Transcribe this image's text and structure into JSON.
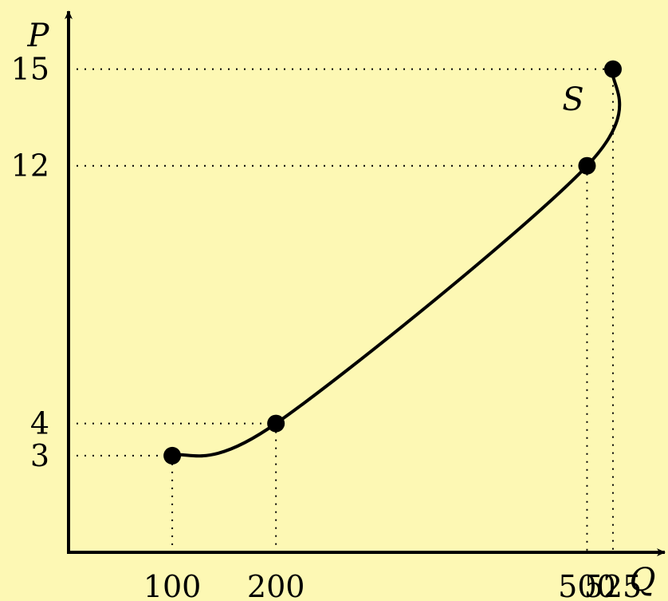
{
  "chart_data": {
    "type": "line",
    "title": "",
    "xlabel": "Q",
    "ylabel": "P",
    "curve_label": "S",
    "xlim": [
      0,
      575
    ],
    "ylim": [
      0,
      16.8
    ],
    "grid": false,
    "guide_lines": "dotted",
    "points": [
      {
        "x": 100,
        "y": 3,
        "x_label": "100",
        "y_label": "3"
      },
      {
        "x": 200,
        "y": 4,
        "x_label": "200",
        "y_label": "4"
      },
      {
        "x": 500,
        "y": 12,
        "x_label": "500",
        "y_label": "12"
      },
      {
        "x": 525,
        "y": 15,
        "x_label": "525",
        "y_label": "15"
      }
    ],
    "colors": {
      "background": "#fdf8b4",
      "curve": "#000000",
      "points": "#000000"
    }
  }
}
